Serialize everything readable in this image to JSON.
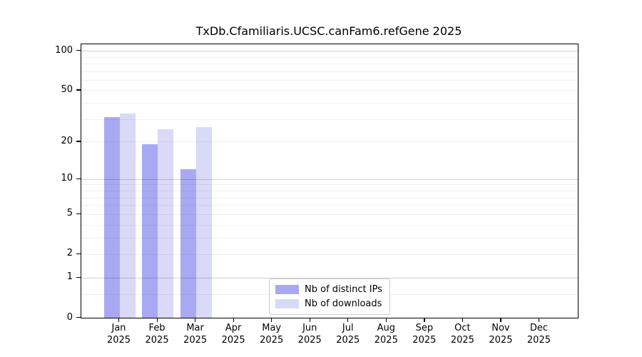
{
  "chart_data": {
    "type": "bar",
    "title": "TxDb.Cfamiliaris.UCSC.canFam6.refGene 2025",
    "categories": [
      "Jan 2025",
      "Feb 2025",
      "Mar 2025",
      "Apr 2025",
      "May 2025",
      "Jun 2025",
      "Jul 2025",
      "Aug 2025",
      "Sep 2025",
      "Oct 2025",
      "Nov 2025",
      "Dec 2025"
    ],
    "series": [
      {
        "name": "Nb of distinct IPs",
        "color": "#a9a9f3",
        "values": [
          31,
          19,
          12,
          null,
          null,
          null,
          null,
          null,
          null,
          null,
          null,
          null
        ]
      },
      {
        "name": "Nb of downloads",
        "color": "#d9d9f8",
        "values": [
          33,
          25,
          26,
          null,
          null,
          null,
          null,
          null,
          null,
          null,
          null,
          null
        ]
      }
    ],
    "xlabel": "",
    "ylabel": "",
    "yscale": "log1p",
    "ylim": [
      0,
      112
    ],
    "yticks": [
      0,
      1,
      2,
      5,
      10,
      20,
      50,
      100
    ],
    "ytick_labels": [
      "0",
      "1",
      "2",
      "5",
      "10",
      "20",
      "50",
      "100"
    ],
    "yticks_major_grid": [
      1,
      10,
      100
    ],
    "yticks_minor_grid": [
      0.5,
      2,
      3,
      4,
      5,
      6,
      7,
      8,
      9,
      20,
      30,
      40,
      50,
      60,
      70,
      80,
      90
    ],
    "grid": true,
    "legend_position": "lower center"
  }
}
